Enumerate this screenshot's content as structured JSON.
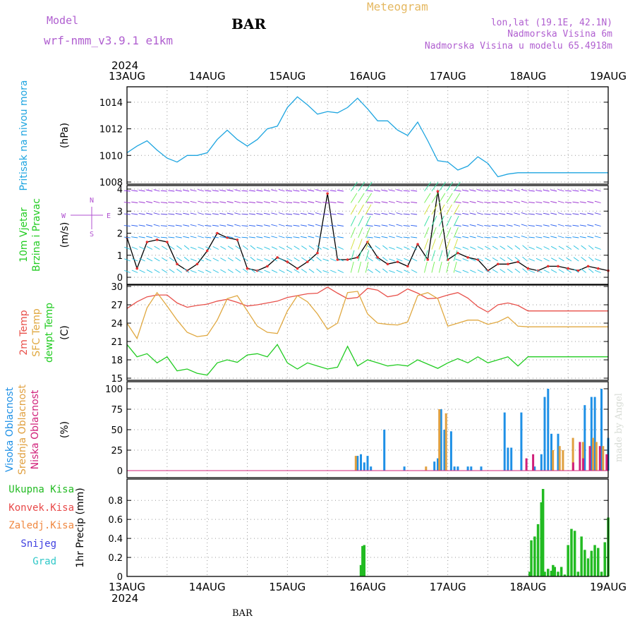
{
  "header": {
    "model_label": "Model",
    "model_name": "wrf-nmm_v3.9.1 e1km",
    "station": "BAR",
    "product": "Meteogram",
    "coords": "lon,lat (19.1E, 42.1N)",
    "elevation": "Nadmorska Visina 6m",
    "model_elevation": "Nadmorska Visina u modelu 65.4918m",
    "year": "2024",
    "footer_station": "BAR",
    "credit": "made by Angel"
  },
  "colors": {
    "pressure": "#1ea5e0",
    "temp_2m": "#e8504a",
    "temp_sfc": "#e0a840",
    "dewpoint": "#22cc22",
    "cloud_high": "#1e90e6",
    "cloud_mid": "#e0a040",
    "cloud_low": "#d0207a",
    "precip_total": "#22bb22",
    "precip_conv": "#e84848",
    "precip_frozen": "#f08840",
    "snow": "#4040e0",
    "hail": "#30c8c8",
    "wind_axis": "#b050d0"
  },
  "chart_data": {
    "type": "line",
    "x_axis": {
      "tick_labels": [
        "13AUG",
        "14AUG",
        "15AUG",
        "16AUG",
        "17AUG",
        "18AUG",
        "19AUG"
      ],
      "range_hours": [
        0,
        144
      ],
      "tick_every_hours": 24
    },
    "panels": [
      {
        "id": "pressure",
        "type": "line",
        "ylabel": [
          "Pritisak na nivou mora"
        ],
        "unit": "(hPa)",
        "ylim": [
          1008,
          1015
        ],
        "yticks": [
          1008,
          1010,
          1012,
          1014
        ],
        "series": [
          {
            "x": [
              0,
              3,
              6,
              9,
              12,
              15,
              18,
              21,
              24,
              27,
              30,
              33,
              36,
              39,
              42,
              45,
              48,
              51,
              54,
              57,
              60,
              63,
              66,
              69,
              72,
              75,
              78,
              81,
              84,
              87,
              90,
              93,
              96,
              99,
              102,
              105,
              108,
              111,
              114,
              117,
              120,
              123,
              126,
              129,
              132,
              135,
              138,
              141,
              144
            ],
            "y": [
              1010.2,
              1010.7,
              1011.1,
              1010.4,
              1009.8,
              1009.5,
              1010.0,
              1010.0,
              1010.2,
              1011.2,
              1011.9,
              1011.2,
              1010.7,
              1011.2,
              1012.0,
              1012.2,
              1013.6,
              1014.4,
              1013.8,
              1013.1,
              1013.3,
              1013.2,
              1013.6,
              1014.3,
              1013.5,
              1012.6,
              1012.6,
              1011.9,
              1011.5,
              1012.5,
              1011.1,
              1009.6,
              1009.5,
              1008.9,
              1009.2,
              1009.9,
              1009.4,
              1008.4,
              1008.6,
              1008.7,
              1008.7,
              1008.7,
              1008.7,
              1008.7,
              1008.7,
              1008.7,
              1008.7,
              1008.7,
              1008.7
            ]
          }
        ]
      },
      {
        "id": "wind",
        "type": "line",
        "ylabel": [
          "10m Vjetar",
          "Brzina i Pravac"
        ],
        "unit": "(m/s)",
        "ylim": [
          0,
          4
        ],
        "yticks": [
          0,
          1,
          2,
          3,
          4
        ],
        "compass": {
          "n": "N",
          "e": "E",
          "w": "W",
          "s": "S"
        },
        "series": [
          {
            "x": [
              0,
              3,
              6,
              9,
              12,
              15,
              18,
              21,
              24,
              27,
              30,
              33,
              36,
              39,
              42,
              45,
              48,
              51,
              54,
              57,
              60,
              63,
              66,
              69,
              72,
              75,
              78,
              81,
              84,
              87,
              90,
              93,
              96,
              99,
              102,
              105,
              108,
              111,
              114,
              117,
              120,
              123,
              126,
              129,
              132,
              135,
              138,
              141,
              144
            ],
            "y": [
              1.8,
              0.4,
              1.6,
              1.7,
              1.6,
              0.6,
              0.3,
              0.6,
              1.2,
              2.0,
              1.8,
              1.7,
              0.4,
              0.3,
              0.5,
              0.9,
              0.7,
              0.4,
              0.7,
              1.1,
              3.8,
              0.8,
              0.8,
              0.9,
              1.6,
              0.9,
              0.6,
              0.7,
              0.5,
              1.5,
              0.8,
              3.9,
              0.8,
              1.1,
              0.9,
              0.8,
              0.3,
              0.6,
              0.6,
              0.7,
              0.4,
              0.3,
              0.5,
              0.5,
              0.4,
              0.3,
              0.5,
              0.4,
              0.3
            ]
          }
        ]
      },
      {
        "id": "temperature",
        "type": "line",
        "ylabel": [
          "2m Temp",
          "SFC Temp",
          "dewpt Temp"
        ],
        "unit": "(C)",
        "ylim": [
          15,
          30
        ],
        "yticks": [
          15,
          18,
          21,
          24,
          27,
          30
        ],
        "series": [
          {
            "name": "2m Temp",
            "x": [
              0,
              3,
              6,
              9,
              12,
              15,
              18,
              21,
              24,
              27,
              30,
              33,
              36,
              39,
              42,
              45,
              48,
              51,
              54,
              57,
              60,
              63,
              66,
              69,
              72,
              75,
              78,
              81,
              84,
              87,
              90,
              93,
              96,
              99,
              102,
              105,
              108,
              111,
              114,
              117,
              120,
              123,
              126,
              129,
              132,
              135,
              138,
              141,
              144
            ],
            "y": [
              26.4,
              27.5,
              28.3,
              28.6,
              28.6,
              27.3,
              26.6,
              26.9,
              27.1,
              27.6,
              27.9,
              27.4,
              26.8,
              27.0,
              27.3,
              27.6,
              28.2,
              28.5,
              28.8,
              28.9,
              29.9,
              28.9,
              28.0,
              28.2,
              29.7,
              29.4,
              28.3,
              28.6,
              29.6,
              28.9,
              28.0,
              28.1,
              28.6,
              29.0,
              28.1,
              26.7,
              25.8,
              27.0,
              27.3,
              26.9,
              26.0,
              26.0,
              26.0,
              26.0,
              26.0,
              26.0,
              26.0,
              26.0,
              26.0
            ]
          },
          {
            "name": "SFC Temp",
            "x": [
              0,
              3,
              6,
              9,
              12,
              15,
              18,
              21,
              24,
              27,
              30,
              33,
              36,
              39,
              42,
              45,
              48,
              51,
              54,
              57,
              60,
              63,
              66,
              69,
              72,
              75,
              78,
              81,
              84,
              87,
              90,
              93,
              96,
              99,
              102,
              105,
              108,
              111,
              114,
              117,
              120,
              123,
              126,
              129,
              132,
              135,
              138,
              141,
              144
            ],
            "y": [
              24.0,
              21.5,
              26.5,
              29.0,
              26.8,
              24.5,
              22.5,
              21.8,
              22.0,
              24.5,
              28.0,
              28.5,
              26.0,
              23.5,
              22.5,
              22.3,
              26.0,
              28.5,
              27.5,
              25.5,
              23.0,
              24.0,
              29.0,
              29.2,
              25.5,
              24.0,
              23.8,
              23.7,
              24.2,
              28.5,
              29.0,
              28.0,
              23.5,
              24.0,
              24.5,
              24.5,
              23.8,
              24.2,
              25.0,
              23.5,
              23.4,
              23.4,
              23.4,
              23.4,
              23.4,
              23.4,
              23.4,
              23.4,
              23.4
            ]
          },
          {
            "name": "dewpt Temp",
            "x": [
              0,
              3,
              6,
              9,
              12,
              15,
              18,
              21,
              24,
              27,
              30,
              33,
              36,
              39,
              42,
              45,
              48,
              51,
              54,
              57,
              60,
              63,
              66,
              69,
              72,
              75,
              78,
              81,
              84,
              87,
              90,
              93,
              96,
              99,
              102,
              105,
              108,
              111,
              114,
              117,
              120,
              123,
              126,
              129,
              132,
              135,
              138,
              141,
              144
            ],
            "y": [
              20.5,
              18.5,
              19.0,
              17.5,
              18.5,
              16.2,
              16.5,
              15.8,
              15.5,
              17.5,
              18.0,
              17.6,
              18.8,
              19.0,
              18.5,
              20.5,
              17.5,
              16.5,
              17.5,
              17.0,
              16.5,
              16.8,
              20.2,
              17.0,
              18.0,
              17.5,
              17.0,
              17.2,
              17.0,
              18.0,
              17.3,
              16.6,
              17.5,
              18.2,
              17.5,
              18.5,
              17.5,
              18.0,
              18.5,
              17.0,
              18.5,
              18.5,
              18.5,
              18.5,
              18.5,
              18.5,
              18.5,
              18.5,
              18.5
            ]
          }
        ]
      },
      {
        "id": "clouds",
        "type": "bar",
        "ylabel": [
          "Visoka Oblacnost",
          "Srednja Oblacnost",
          "Niska Oblacnost"
        ],
        "unit": "(%)",
        "ylim": [
          0,
          100
        ],
        "yticks": [
          0,
          25,
          50,
          75,
          100
        ],
        "series": [
          {
            "name": "Visoka Oblacnost",
            "x": [
              69,
              70,
              71,
              72,
              73,
              77,
              83,
              92,
              93,
              94,
              95,
              97,
              98,
              99,
              102,
              103,
              106,
              113,
              114,
              115,
              118,
              122,
              124,
              125,
              126,
              127,
              129,
              137,
              139,
              140,
              142,
              144
            ],
            "y": [
              18,
              20,
              10,
              18,
              5,
              50,
              5,
              11,
              15,
              75,
              50,
              48,
              5,
              5,
              5,
              5,
              5,
              71,
              28,
              28,
              71,
              5,
              20,
              90,
              100,
              45,
              45,
              80,
              90,
              90,
              100,
              40
            ]
          },
          {
            "name": "Srednja Oblacnost",
            "x": [
              69,
              90,
              94,
              96,
              128,
              130,
              131,
              134,
              137,
              140,
              141,
              143
            ],
            "y": [
              18,
              5,
              75,
              70,
              25,
              30,
              25,
              40,
              35,
              40,
              35,
              30
            ]
          },
          {
            "name": "Niska Oblacnost",
            "x": [
              119,
              121,
              133,
              135,
              136,
              138,
              141,
              143
            ],
            "y": [
              15,
              20,
              10,
              35,
              15,
              30,
              30,
              20
            ]
          }
        ]
      },
      {
        "id": "precip",
        "type": "bar",
        "ylabel": [
          "1hr Precip (mm)"
        ],
        "unit": "",
        "ylim": [
          0,
          0.95
        ],
        "yticks": [
          0,
          0.2,
          0.4,
          0.6,
          0.8
        ],
        "legend": [
          "Ukupna Kisa",
          "Konvek.Kisa",
          "Zaledj.Kisa",
          "Snijeg",
          "Grad"
        ],
        "series": [
          {
            "name": "Ukupna Kisa",
            "x": [
              70,
              70.5,
              71,
              120.5,
              121,
              122,
              123,
              124,
              124.5,
              125,
              126,
              127,
              127.5,
              128,
              129,
              130,
              131,
              132,
              133,
              134,
              135,
              136,
              137,
              138,
              139,
              140,
              141,
              142,
              143,
              144
            ],
            "y": [
              0.12,
              0.32,
              0.33,
              0.05,
              0.38,
              0.42,
              0.55,
              0.78,
              0.92,
              0.05,
              0.08,
              0.06,
              0.12,
              0.1,
              0.05,
              0.1,
              0.02,
              0.33,
              0.5,
              0.48,
              0.05,
              0.42,
              0.28,
              0.19,
              0.27,
              0.33,
              0.3,
              0.05,
              0.36,
              0.62
            ]
          }
        ]
      }
    ]
  }
}
